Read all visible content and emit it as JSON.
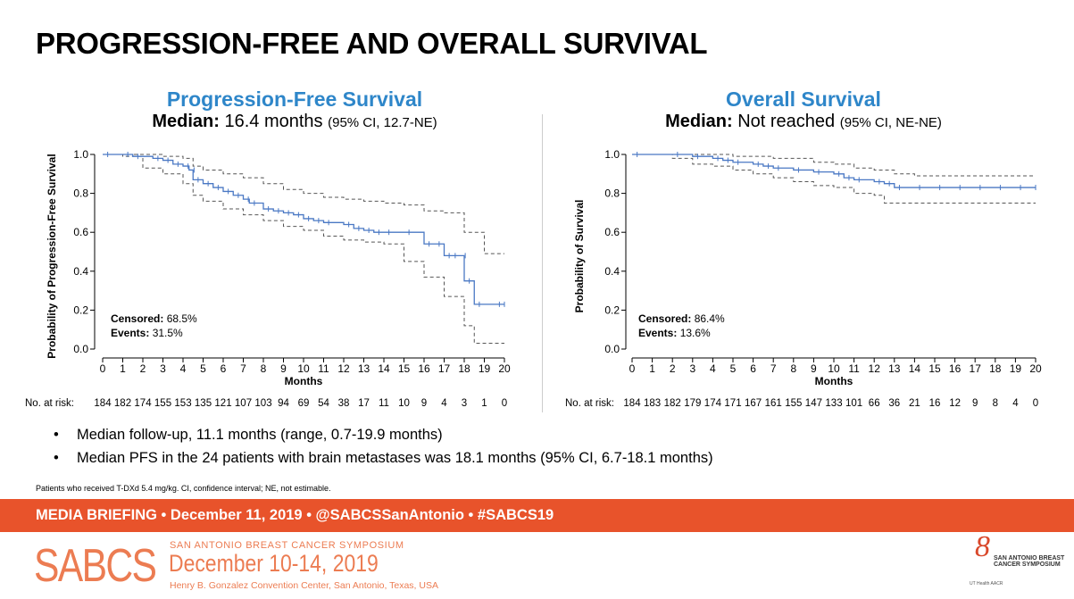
{
  "slide": {
    "title": "PROGRESSION-FREE AND OVERALL SURVIVAL"
  },
  "pfs_panel": {
    "title": "Progression-Free Survival",
    "median_label": "Median:",
    "median_value": "16.4 months",
    "median_ci": "(95% CI, 12.7-NE)",
    "censored_label": "Censored:",
    "censored_value": "68.5%",
    "events_label": "Events:",
    "events_value": "31.5%",
    "at_risk_label": "No. at risk:"
  },
  "os_panel": {
    "title": "Overall Survival",
    "median_label": "Median:",
    "median_value": "Not reached",
    "median_ci": "(95% CI, NE-NE)",
    "censored_label": "Censored:",
    "censored_value": "86.4%",
    "events_label": "Events:",
    "events_value": "13.6%",
    "at_risk_label": "No. at risk:"
  },
  "bullets": [
    "Median follow-up, 11.1 months (range, 0.7-19.9 months)",
    "Median PFS in the 24 patients with brain metastases was 18.1 months (95% CI, 6.7-18.1 months)"
  ],
  "bullet_symbol": "•",
  "footnote": "Patients who received T-DXd 5.4 mg/kg.  CI, confidence interval; NE, not estimable.",
  "banner": "MEDIA BRIEFING  •  December 11, 2019  •  @SABCSSanAntonio  •  #SABCS19",
  "footer": {
    "logo": "SABCS",
    "symposium": "SAN ANTONIO BREAST CANCER SYMPOSIUM",
    "dates": "December 10-14, 2019",
    "venue": "Henry B. Gonzalez Convention Center, San Antonio, Texas, USA",
    "sponsor_numeral": "8",
    "sponsor_text": "SAN ANTONIO BREAST CANCER SYMPOSIUM",
    "sponsor_badges": "UT Health  AACR"
  },
  "colors": {
    "curve": "#4a78c4",
    "title_blue": "#2e86c9",
    "banner": "#e8532b",
    "footer_orange": "#ec7c52"
  },
  "chart_data": [
    {
      "type": "line",
      "subtype": "kaplan-meier",
      "title": "Progression-Free Survival",
      "xlabel": "Months",
      "ylabel": "Probability of Progression-Free Survival",
      "xlim": [
        0,
        20
      ],
      "ylim": [
        0,
        1
      ],
      "xticks": [
        0,
        1,
        2,
        3,
        4,
        5,
        6,
        7,
        8,
        9,
        10,
        11,
        12,
        13,
        14,
        15,
        16,
        17,
        18,
        19,
        20
      ],
      "yticks": [
        "0.0",
        "0.2",
        "0.4",
        "0.6",
        "0.8",
        "1.0"
      ],
      "series": [
        {
          "name": "PFS",
          "x": [
            0,
            1,
            1.5,
            2.5,
            3,
            3.5,
            4,
            4.3,
            4.5,
            5,
            5.5,
            6,
            6.5,
            7,
            7.3,
            8,
            8.5,
            9,
            9.5,
            10,
            10.5,
            11,
            12,
            12.5,
            13,
            13.5,
            14,
            15,
            16,
            16.5,
            17,
            17.3,
            17.8,
            18,
            18.5,
            19.5,
            20
          ],
          "y": [
            1.0,
            1.0,
            0.99,
            0.98,
            0.97,
            0.95,
            0.94,
            0.92,
            0.87,
            0.85,
            0.83,
            0.81,
            0.79,
            0.77,
            0.75,
            0.72,
            0.71,
            0.7,
            0.69,
            0.67,
            0.66,
            0.65,
            0.64,
            0.62,
            0.61,
            0.6,
            0.6,
            0.6,
            0.54,
            0.54,
            0.48,
            0.48,
            0.48,
            0.35,
            0.23,
            0.23,
            0.23
          ]
        },
        {
          "name": "Upper 95% CI",
          "x": [
            0,
            2,
            3,
            4,
            4.5,
            5,
            6,
            7,
            8,
            9,
            10,
            11,
            12,
            13,
            14,
            15,
            16,
            17,
            18,
            19,
            20
          ],
          "y": [
            1.0,
            1.0,
            0.99,
            0.98,
            0.94,
            0.92,
            0.9,
            0.88,
            0.85,
            0.82,
            0.8,
            0.78,
            0.77,
            0.76,
            0.75,
            0.74,
            0.71,
            0.7,
            0.6,
            0.49,
            0.49
          ]
        },
        {
          "name": "Lower 95% CI",
          "x": [
            0,
            1,
            2,
            3,
            4,
            4.5,
            5,
            6,
            7,
            8,
            9,
            10,
            11,
            12,
            13,
            14,
            15,
            16,
            17,
            18,
            18.5,
            19,
            20
          ],
          "y": [
            1.0,
            0.99,
            0.93,
            0.9,
            0.85,
            0.79,
            0.76,
            0.72,
            0.69,
            0.66,
            0.63,
            0.61,
            0.58,
            0.56,
            0.55,
            0.54,
            0.45,
            0.37,
            0.27,
            0.12,
            0.03,
            0.03,
            0.03
          ]
        }
      ],
      "at_risk": [
        "184",
        "182",
        "174",
        "155",
        "153",
        "135",
        "121",
        "107",
        "103",
        "94",
        "69",
        "54",
        "38",
        "17",
        "11",
        "10",
        "9",
        "4",
        "3",
        "1",
        "0"
      ]
    },
    {
      "type": "line",
      "subtype": "kaplan-meier",
      "title": "Overall Survival",
      "xlabel": "Months",
      "ylabel": "Probability of Survival",
      "xlim": [
        0,
        20
      ],
      "ylim": [
        0,
        1
      ],
      "xticks": [
        0,
        1,
        2,
        3,
        4,
        5,
        6,
        7,
        8,
        9,
        10,
        11,
        12,
        13,
        14,
        15,
        16,
        17,
        18,
        19,
        20
      ],
      "yticks": [
        "0.0",
        "0.2",
        "0.4",
        "0.6",
        "0.8",
        "1.0"
      ],
      "series": [
        {
          "name": "OS",
          "x": [
            0,
            2,
            3,
            4,
            4.5,
            5,
            6,
            6.5,
            7,
            8,
            9,
            10,
            10.5,
            11,
            12,
            12.5,
            13,
            14,
            15,
            16,
            17,
            18,
            19,
            20
          ],
          "y": [
            1.0,
            1.0,
            0.99,
            0.98,
            0.97,
            0.96,
            0.95,
            0.94,
            0.93,
            0.92,
            0.91,
            0.9,
            0.88,
            0.87,
            0.86,
            0.85,
            0.83,
            0.83,
            0.83,
            0.83,
            0.83,
            0.83,
            0.83,
            0.83
          ]
        },
        {
          "name": "Upper 95% CI",
          "x": [
            0,
            3,
            5,
            7,
            9,
            10,
            11,
            12,
            13,
            14,
            16,
            18,
            20
          ],
          "y": [
            1.0,
            1.0,
            0.99,
            0.98,
            0.96,
            0.95,
            0.93,
            0.92,
            0.9,
            0.89,
            0.89,
            0.89,
            0.89
          ]
        },
        {
          "name": "Lower 95% CI",
          "x": [
            0,
            2,
            3,
            4,
            5,
            6,
            7,
            8,
            9,
            10,
            11,
            12,
            12.5,
            13,
            14,
            16,
            18,
            20
          ],
          "y": [
            1.0,
            0.98,
            0.95,
            0.94,
            0.92,
            0.9,
            0.88,
            0.86,
            0.84,
            0.83,
            0.8,
            0.79,
            0.75,
            0.75,
            0.75,
            0.75,
            0.75,
            0.75
          ]
        }
      ],
      "at_risk": [
        "184",
        "183",
        "182",
        "179",
        "174",
        "171",
        "167",
        "161",
        "155",
        "147",
        "133",
        "101",
        "66",
        "36",
        "21",
        "16",
        "12",
        "9",
        "8",
        "4",
        "0"
      ]
    }
  ]
}
